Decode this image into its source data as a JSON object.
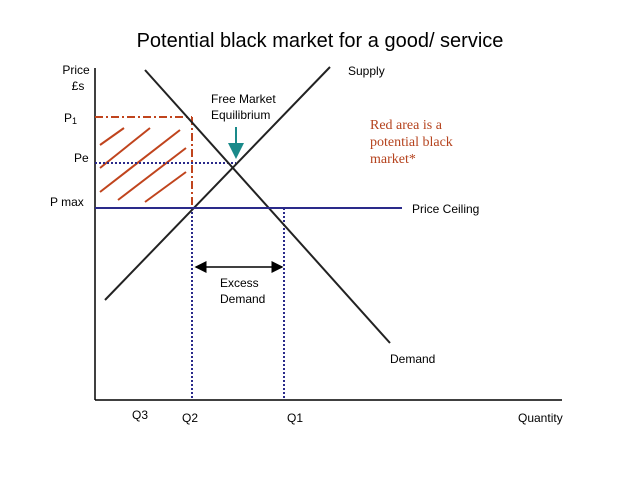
{
  "title": "Potential black market for a good/ service",
  "axes": {
    "y_label": [
      "Price",
      "£s"
    ],
    "x_label": "Quantity"
  },
  "prices": {
    "p1": {
      "main": "P",
      "sub": "1"
    },
    "pe": "Pe",
    "pmax": "P max"
  },
  "quantities": {
    "q3": "Q3",
    "q2": "Q2",
    "q1": "Q1"
  },
  "curves": {
    "supply": "Supply",
    "demand": "Demand",
    "ceiling": "Price Ceiling"
  },
  "annotations": {
    "equilibrium": [
      "Free Market",
      "Equilibrium"
    ],
    "excess": [
      "Excess",
      "Demand"
    ],
    "note": [
      "Red area is a",
      "potential black",
      "market*"
    ]
  }
}
